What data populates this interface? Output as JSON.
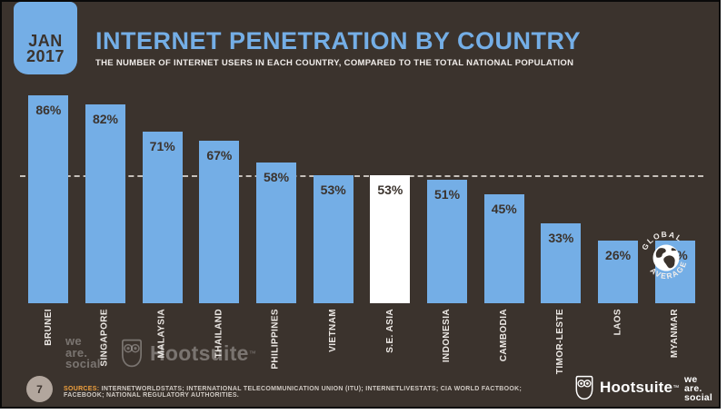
{
  "header": {
    "date_month": "JAN",
    "date_year": "2017",
    "title": "INTERNET PENETRATION BY COUNTRY",
    "subtitle": "THE NUMBER OF INTERNET USERS IN EACH COUNTRY, COMPARED TO THE TOTAL NATIONAL POPULATION"
  },
  "chart_data": {
    "type": "bar",
    "categories": [
      "BRUNEI",
      "SINGAPORE",
      "MALAYSIA",
      "THAILAND",
      "PHILIPPINES",
      "VIETNAM",
      "S.E. ASIA",
      "INDONESIA",
      "CAMBODIA",
      "TIMOR-LESTE",
      "LAOS",
      "MYANMAR"
    ],
    "values": [
      86,
      82,
      71,
      67,
      58,
      53,
      53,
      51,
      45,
      33,
      26,
      26
    ],
    "value_labels": [
      "86%",
      "82%",
      "71%",
      "67%",
      "58%",
      "53%",
      "53%",
      "51%",
      "45%",
      "33%",
      "26%",
      "26%"
    ],
    "highlight_index": 6,
    "highlight_category": "S.E. ASIA",
    "ylim": [
      0,
      90
    ],
    "grid": "off",
    "legend": "none",
    "bar_color": "#74aee6",
    "highlight_bar_color": "#ffffff",
    "background_color": "#3b332d",
    "reference_line": {
      "value": 53,
      "style": "dashed",
      "label_top": "GLOBAL",
      "label_bottom": "AVERAGE"
    }
  },
  "watermark": {
    "we": "we",
    "are": "are.",
    "social": "social",
    "hootsuite": "Hootsuite",
    "tm": "™"
  },
  "footer": {
    "page_number": "7",
    "sources_label": "SOURCES:",
    "sources_text": " INTERNETWORLDSTATS; INTERNATIONAL TELECOMMUNICATION UNION (ITU); INTERNETLIVESTATS; CIA WORLD FACTBOOK; FACEBOOK; NATIONAL REGULATORY AUTHORITIES.",
    "hootsuite_label": "Hootsuite",
    "hootsuite_tm": "™",
    "was_line1": "we",
    "was_line2": "are.",
    "was_line3": "social"
  }
}
